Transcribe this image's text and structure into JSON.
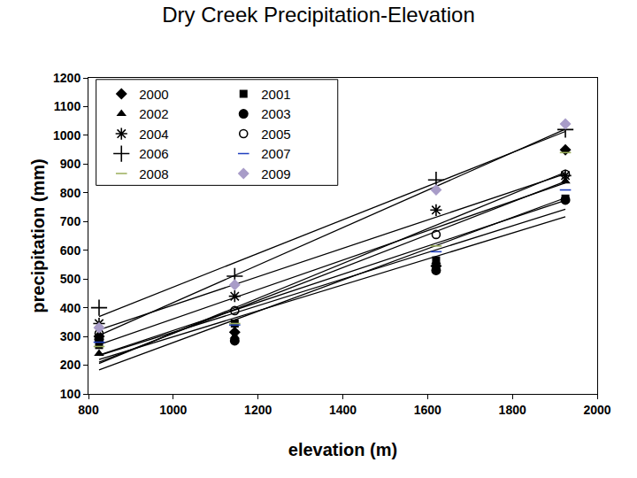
{
  "chart_data": {
    "type": "scatter",
    "title": "Dry Creek Precipitation-Elevation",
    "x_label": "elevation (m)",
    "y_label": "precipitation (mm)",
    "x": [
      825,
      1145,
      1620,
      1925
    ],
    "series": [
      {
        "name": "2000",
        "color": "#000000",
        "marker": "diamond",
        "values": [
          300,
          315,
          545,
          950
        ]
      },
      {
        "name": "2001",
        "color": "#000000",
        "marker": "square",
        "values": [
          270,
          345,
          565,
          780
        ]
      },
      {
        "name": "2002",
        "color": "#000000",
        "marker": "triangle",
        "values": [
          240,
          300,
          560,
          840
        ]
      },
      {
        "name": "2003",
        "color": "#000000",
        "marker": "circle",
        "values": [
          290,
          285,
          530,
          775
        ]
      },
      {
        "name": "2004",
        "color": "#000000",
        "marker": "asterisk",
        "values": [
          345,
          440,
          740,
          860
        ]
      },
      {
        "name": "2005",
        "color": "#000000",
        "marker": "circle-open",
        "values": [
          310,
          390,
          655,
          865
        ]
      },
      {
        "name": "2006",
        "color": "#000000",
        "marker": "plus",
        "values": [
          400,
          510,
          845,
          1020
        ]
      },
      {
        "name": "2007",
        "color": "#1f3fbf",
        "marker": "dash",
        "values": [
          280,
          340,
          595,
          810
        ]
      },
      {
        "name": "2008",
        "color": "#9aae5a",
        "marker": "dash",
        "values": [
          265,
          345,
          615,
          940
        ]
      },
      {
        "name": "2009",
        "color": "#a89cc8",
        "marker": "diamond",
        "values": [
          330,
          480,
          810,
          1040
        ]
      }
    ],
    "xlim": [
      800,
      2000
    ],
    "xticks": [
      800,
      1000,
      1200,
      1400,
      1600,
      1800,
      2000
    ],
    "ylim": [
      100,
      1200
    ],
    "yticks": [
      100,
      200,
      300,
      400,
      500,
      600,
      700,
      800,
      900,
      1000,
      1100,
      1200
    ],
    "grid": false,
    "legend": "top-left"
  }
}
